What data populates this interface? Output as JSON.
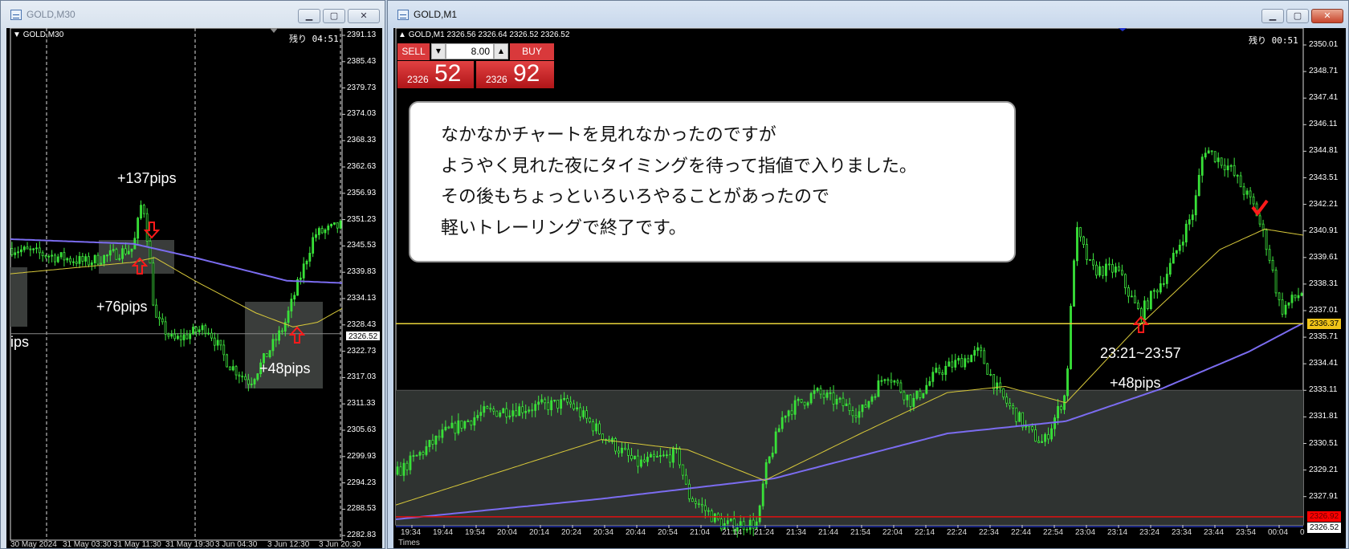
{
  "left_window": {
    "title": "GOLD,M30",
    "chart_label": "GOLD,M30",
    "remaining": "残り 04:51",
    "buttons": {
      "minimize": "▁",
      "maximize": "▢",
      "close": "✕"
    }
  },
  "right_window": {
    "title": "GOLD,M1",
    "chart_label": "GOLD,M1  2326.56 2326.64 2326.52 2326.52",
    "remaining": "残り 00:51",
    "buttons": {
      "minimize": "▁",
      "maximize": "▢",
      "close": "✕"
    },
    "trade_panel": {
      "sell_label": "SELL",
      "buy_label": "BUY",
      "lot": "8.00",
      "sell_price_small": "2326",
      "sell_price_big": "52",
      "buy_price_small": "2326",
      "buy_price_big": "92"
    },
    "time_axis_caption": "Times"
  },
  "note": {
    "lines": [
      "なかなかチャートを見れなかったのですが",
      "ようやく見れた夜にタイミングを待って指値で入りました。",
      "その後もちょっといろいろやることがあったので",
      "軽いトレーリングで終了です。"
    ]
  },
  "annotations": {
    "left": [
      "+137pips",
      "+76pips",
      "+48pips",
      "ips"
    ],
    "right": [
      "23:21~23:57",
      "+48pips"
    ]
  },
  "colors": {
    "bull": "#33dd33",
    "ma_fast": "#d8c93a",
    "ma_slow": "#7b6cf0",
    "bid_line": "#e8d43a",
    "ask_line": "#e01010",
    "arrow": "#ff1a1a",
    "zone": "#2f3331"
  },
  "chart_data": [
    {
      "type": "candlestick",
      "symbol": "GOLD",
      "timeframe": "M30",
      "y_ticks": [
        "2391.13",
        "2385.43",
        "2379.73",
        "2374.03",
        "2368.33",
        "2362.63",
        "2356.93",
        "2351.23",
        "2345.53",
        "2339.83",
        "2334.13",
        "2328.43",
        "2322.73",
        "2317.03",
        "2311.33",
        "2305.63",
        "2299.93",
        "2294.23",
        "2288.53",
        "2282.83"
      ],
      "current_price": "2326.52",
      "x_tick_labels": [
        "30 May 2024",
        "31 May 03:30",
        "31 May 11:30",
        "31 May 19:30",
        "3 Jun 04:30",
        "3 Jun 12:30",
        "3 Jun 20:30"
      ],
      "bars": 108,
      "price_path": [
        [
          0,
          2345
        ],
        [
          25,
          2342
        ],
        [
          40,
          2345
        ],
        [
          43,
          2356
        ],
        [
          45,
          2345
        ],
        [
          47,
          2330
        ],
        [
          53,
          2325
        ],
        [
          64,
          2328
        ],
        [
          71,
          2320
        ],
        [
          78,
          2316
        ],
        [
          89,
          2328
        ],
        [
          95,
          2340
        ],
        [
          99,
          2348
        ],
        [
          108,
          2350
        ]
      ],
      "ma_fast": [
        [
          0,
          2339.5
        ],
        [
          40,
          2342
        ],
        [
          47,
          2343
        ],
        [
          60,
          2338
        ],
        [
          80,
          2331
        ],
        [
          92,
          2328
        ],
        [
          100,
          2329
        ],
        [
          108,
          2332
        ]
      ],
      "ma_slow": [
        [
          0,
          2347
        ],
        [
          40,
          2346
        ],
        [
          60,
          2343
        ],
        [
          90,
          2338
        ],
        [
          108,
          2337.5
        ]
      ]
    },
    {
      "type": "candlestick",
      "symbol": "GOLD",
      "timeframe": "M1",
      "y_ticks": [
        "2350.01",
        "2348.71",
        "2347.41",
        "2346.11",
        "2344.81",
        "2343.51",
        "2342.21",
        "2340.91",
        "2339.61",
        "2338.31",
        "2337.01",
        "2335.71",
        "2334.41",
        "2333.11",
        "2331.81",
        "2330.51",
        "2329.21",
        "2327.91"
      ],
      "bid_price": "2336.37",
      "ask_price": "2326.92",
      "current_price": "2326.52",
      "x_tick_labels": [
        "19:34",
        "19:44",
        "19:54",
        "20:04",
        "20:14",
        "20:24",
        "20:34",
        "20:44",
        "20:54",
        "21:04",
        "21:14",
        "21:24",
        "21:34",
        "21:44",
        "21:54",
        "22:04",
        "22:14",
        "22:24",
        "22:34",
        "22:44",
        "22:54",
        "23:04",
        "23:14",
        "23:24",
        "23:34",
        "23:44",
        "23:54",
        "00:04",
        "0"
      ],
      "bars": 283,
      "price_path": [
        [
          0,
          2329
        ],
        [
          15,
          2331
        ],
        [
          27,
          2332
        ],
        [
          54,
          2332.5
        ],
        [
          64,
          2331
        ],
        [
          75,
          2329.5
        ],
        [
          88,
          2330
        ],
        [
          91,
          2328
        ],
        [
          102,
          2326.5
        ],
        [
          113,
          2326.6
        ],
        [
          115,
          2329
        ],
        [
          121,
          2332
        ],
        [
          131,
          2333
        ],
        [
          145,
          2332
        ],
        [
          153,
          2334
        ],
        [
          161,
          2332.5
        ],
        [
          169,
          2334
        ],
        [
          182,
          2335
        ],
        [
          188,
          2333
        ],
        [
          198,
          2331
        ],
        [
          202,
          2330.5
        ],
        [
          209,
          2333
        ],
        [
          212,
          2341
        ],
        [
          217,
          2339
        ],
        [
          225,
          2339
        ],
        [
          232,
          2336.8
        ],
        [
          241,
          2339
        ],
        [
          249,
          2342
        ],
        [
          252,
          2345
        ],
        [
          260,
          2344
        ],
        [
          268,
          2342
        ],
        [
          272,
          2340
        ],
        [
          276,
          2337
        ],
        [
          283,
          2338
        ]
      ],
      "ma_fast": [
        [
          0,
          2327.5
        ],
        [
          64,
          2330.7
        ],
        [
          91,
          2330.2
        ],
        [
          115,
          2328.7
        ],
        [
          145,
          2331
        ],
        [
          172,
          2333
        ],
        [
          190,
          2333.3
        ],
        [
          209,
          2332.5
        ],
        [
          230,
          2336
        ],
        [
          257,
          2340
        ],
        [
          271,
          2341
        ],
        [
          283,
          2340.7
        ]
      ],
      "ma_slow": [
        [
          0,
          2326.8
        ],
        [
          64,
          2327.8
        ],
        [
          118,
          2328.8
        ],
        [
          172,
          2331
        ],
        [
          209,
          2331.6
        ],
        [
          239,
          2333.2
        ],
        [
          266,
          2335
        ],
        [
          283,
          2336.4
        ]
      ]
    }
  ]
}
